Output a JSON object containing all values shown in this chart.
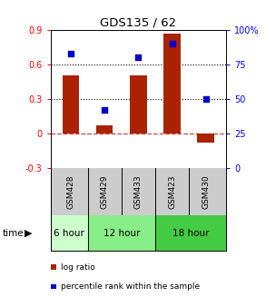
{
  "title": "GDS135 / 62",
  "samples": [
    "GSM428",
    "GSM429",
    "GSM433",
    "GSM423",
    "GSM430"
  ],
  "log_ratio": [
    0.5,
    0.07,
    0.5,
    0.87,
    -0.08
  ],
  "percentile_rank": [
    83,
    42,
    80,
    90,
    50
  ],
  "bar_color": "#aa2200",
  "point_color": "#0000cc",
  "ylim_left": [
    -0.3,
    0.9
  ],
  "ylim_right": [
    0,
    100
  ],
  "yticks_left": [
    -0.3,
    0.0,
    0.3,
    0.6,
    0.9
  ],
  "yticks_right": [
    0,
    25,
    50,
    75,
    100
  ],
  "ytick_labels_left": [
    "-0.3",
    "0",
    "0.3",
    "0.6",
    "0.9"
  ],
  "ytick_labels_right": [
    "0",
    "25",
    "50",
    "75",
    "100%"
  ],
  "hline_dotted": [
    0.3,
    0.6
  ],
  "hline_zero_color": "#cc4444",
  "time_groups": [
    {
      "label": "6 hour",
      "start": 0,
      "end": 1,
      "color": "#ccffcc"
    },
    {
      "label": "12 hour",
      "start": 1,
      "end": 3,
      "color": "#88ee88"
    },
    {
      "label": "18 hour",
      "start": 3,
      "end": 5,
      "color": "#44cc44"
    }
  ],
  "time_label": "time",
  "legend_items": [
    {
      "label": "log ratio",
      "color": "#aa2200"
    },
    {
      "label": "percentile rank within the sample",
      "color": "#0000cc"
    }
  ],
  "bar_width": 0.5
}
